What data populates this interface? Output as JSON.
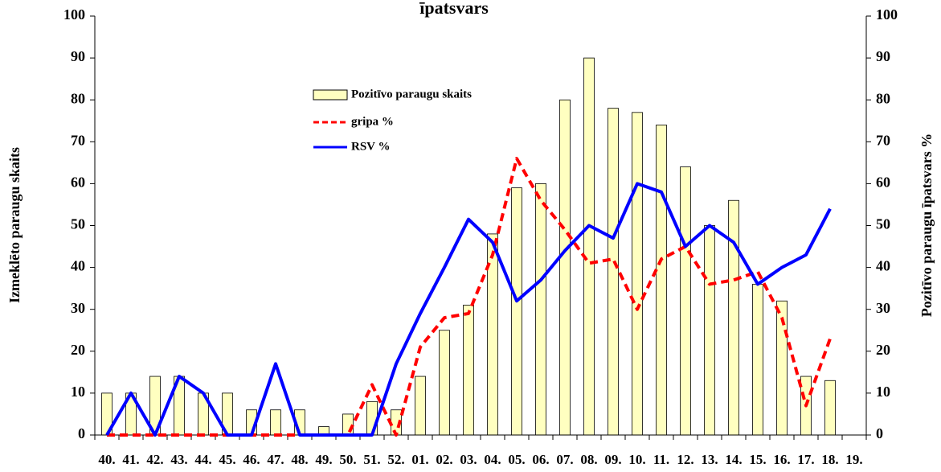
{
  "chart_data": {
    "type": "bar",
    "title": "īpatsvars",
    "ylabel": "Izmeklēto paraugu skaits",
    "y2label": "Pozitīvo paraugu īpatsvars %",
    "categories": [
      "40.",
      "41.",
      "42.",
      "43.",
      "44.",
      "45.",
      "46.",
      "47.",
      "48.",
      "49.",
      "50.",
      "51.",
      "52.",
      "01.",
      "02.",
      "03.",
      "04.",
      "05.",
      "06.",
      "07.",
      "08.",
      "09.",
      "10.",
      "11.",
      "12.",
      "13.",
      "14.",
      "15.",
      "16.",
      "17.",
      "18.",
      "19."
    ],
    "ylim": [
      0,
      100
    ],
    "yticks": [
      0,
      10,
      20,
      30,
      40,
      50,
      60,
      70,
      80,
      90,
      100
    ],
    "y2lim": [
      0,
      100
    ],
    "y2ticks": [
      0,
      10,
      20,
      30,
      40,
      50,
      60,
      70,
      80,
      90,
      100
    ],
    "series": [
      {
        "name": "Pozitīvo paraugu skaits",
        "type": "bar",
        "color": "#ffffc0",
        "values": [
          10,
          10,
          14,
          14,
          10,
          10,
          6,
          6,
          6,
          2,
          5,
          8,
          6,
          14,
          25,
          31,
          48,
          59,
          60,
          80,
          90,
          78,
          77,
          74,
          64,
          50,
          56,
          36,
          32,
          14,
          13,
          null
        ]
      },
      {
        "name": "gripa %",
        "type": "line",
        "axis": "y2",
        "color": "#ff0000",
        "dashed": true,
        "values": [
          0,
          0,
          0,
          0,
          0,
          0,
          0,
          0,
          0,
          0,
          0,
          12,
          0,
          21,
          28,
          29,
          43,
          66,
          56,
          49,
          41,
          42,
          30,
          42,
          45,
          36,
          37,
          39,
          28,
          7,
          23,
          null
        ]
      },
      {
        "name": "RSV %",
        "type": "line",
        "axis": "y2",
        "color": "#0000ff",
        "values": [
          0,
          10,
          0,
          14,
          10,
          0,
          0,
          17,
          0,
          0,
          0,
          0,
          17,
          29,
          40,
          51.5,
          46,
          32,
          37,
          44,
          50,
          47,
          60,
          58,
          45,
          50,
          46,
          36,
          40,
          43,
          54,
          null
        ]
      }
    ]
  }
}
